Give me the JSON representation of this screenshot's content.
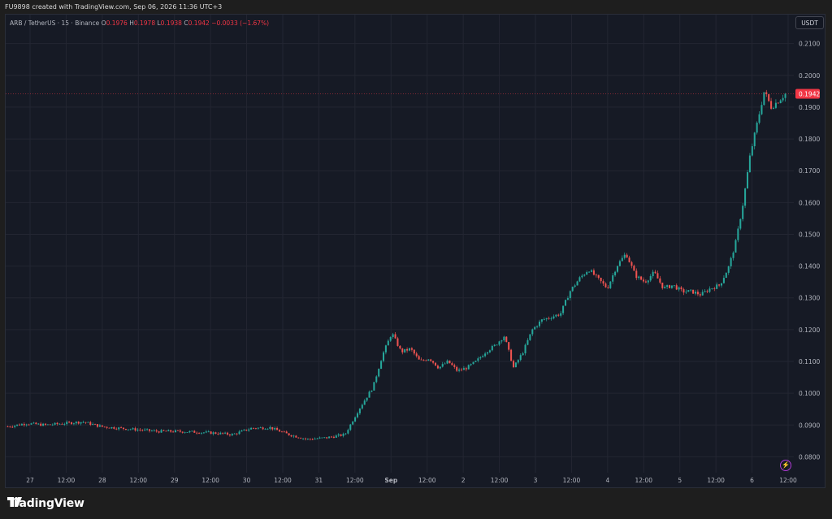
{
  "caption": "FU9898 created with TradingView.com, Sep 06, 2026 11:36 UTC+3",
  "legend": {
    "symbol": "ARB / TetherUS · 15 · Binance",
    "o_label": "O",
    "o_value": "0.1976",
    "h_label": "H",
    "h_value": "0.1978",
    "l_label": "L",
    "l_value": "0.1938",
    "c_label": "C",
    "c_value": "0.1942",
    "change": "−0.0033 (−1.67%)"
  },
  "currency_button": "USDT",
  "brand": {
    "name": "TradingView",
    "logo_icon": "tradingview-logo-icon"
  },
  "colors": {
    "up": "#26a69a",
    "down": "#ef5350",
    "background": "#161a25",
    "grid": "#232632",
    "price_tag": "#f23645"
  },
  "chart_data": {
    "type": "candlestick",
    "title": "",
    "ylim": [
      0.075,
      0.214
    ],
    "y_ticks": [
      "0.0800",
      "0.0900",
      "0.1000",
      "0.1100",
      "0.1200",
      "0.1300",
      "0.1400",
      "0.1500",
      "0.1600",
      "0.1700",
      "0.1800",
      "0.1900",
      "0.2000",
      "0.2100"
    ],
    "x_ticks": [
      "27",
      "12:00",
      "28",
      "12:00",
      "29",
      "12:00",
      "30",
      "12:00",
      "31",
      "12:00",
      "Sep",
      "12:00",
      "2",
      "12:00",
      "3",
      "12:00",
      "4",
      "12:00",
      "5",
      "12:00",
      "6",
      "12:00"
    ],
    "last_price": "0.1942",
    "grid": true,
    "approx_close_path": [
      [
        0,
        0.0895
      ],
      [
        8,
        0.0905
      ],
      [
        16,
        0.09
      ],
      [
        24,
        0.0905
      ],
      [
        32,
        0.091
      ],
      [
        40,
        0.0895
      ],
      [
        48,
        0.089
      ],
      [
        56,
        0.0885
      ],
      [
        64,
        0.088
      ],
      [
        72,
        0.088
      ],
      [
        80,
        0.0878
      ],
      [
        88,
        0.0875
      ],
      [
        96,
        0.087
      ],
      [
        104,
        0.089
      ],
      [
        112,
        0.0892
      ],
      [
        120,
        0.087
      ],
      [
        128,
        0.0855
      ],
      [
        136,
        0.086
      ],
      [
        144,
        0.087
      ],
      [
        150,
        0.095
      ],
      [
        156,
        0.102
      ],
      [
        160,
        0.112
      ],
      [
        164,
        0.119
      ],
      [
        168,
        0.113
      ],
      [
        172,
        0.114
      ],
      [
        176,
        0.11
      ],
      [
        180,
        0.111
      ],
      [
        184,
        0.108
      ],
      [
        188,
        0.11
      ],
      [
        192,
        0.107
      ],
      [
        196,
        0.108
      ],
      [
        200,
        0.11
      ],
      [
        204,
        0.113
      ],
      [
        208,
        0.115
      ],
      [
        212,
        0.118
      ],
      [
        216,
        0.108
      ],
      [
        220,
        0.113
      ],
      [
        224,
        0.12
      ],
      [
        228,
        0.123
      ],
      [
        232,
        0.124
      ],
      [
        236,
        0.125
      ],
      [
        240,
        0.132
      ],
      [
        244,
        0.136
      ],
      [
        248,
        0.139
      ],
      [
        252,
        0.136
      ],
      [
        256,
        0.133
      ],
      [
        260,
        0.14
      ],
      [
        264,
        0.144
      ],
      [
        268,
        0.137
      ],
      [
        272,
        0.135
      ],
      [
        276,
        0.138
      ],
      [
        280,
        0.133
      ],
      [
        284,
        0.134
      ],
      [
        288,
        0.132
      ],
      [
        292,
        0.132
      ],
      [
        296,
        0.131
      ],
      [
        300,
        0.133
      ],
      [
        304,
        0.134
      ],
      [
        308,
        0.14
      ],
      [
        311,
        0.148
      ],
      [
        314,
        0.16
      ],
      [
        317,
        0.175
      ],
      [
        320,
        0.185
      ],
      [
        323,
        0.195
      ],
      [
        326,
        0.19
      ],
      [
        329,
        0.192
      ],
      [
        332,
        0.1942
      ]
    ]
  }
}
